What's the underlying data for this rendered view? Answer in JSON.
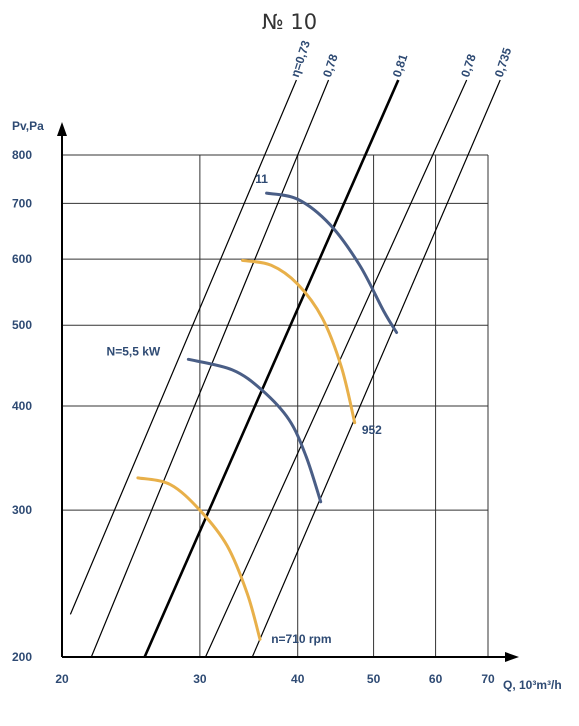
{
  "title": "№ 10",
  "chart_data": {
    "type": "line",
    "scale": "log-log",
    "xlabel": "Q, 10³m³/h",
    "ylabel": "Pv,Pa",
    "xlim": [
      20,
      70
    ],
    "ylim": [
      200,
      800
    ],
    "x_ticks": [
      20,
      30,
      40,
      50,
      60,
      70
    ],
    "y_ticks": [
      200,
      300,
      400,
      500,
      600,
      700,
      800
    ],
    "grid": true,
    "efficiency_lines": [
      {
        "label": "η=0,73",
        "bold": false,
        "points": [
          [
            20.5,
            225
          ],
          [
            36.3,
            800
          ]
        ]
      },
      {
        "label": "0,78",
        "bold": false,
        "points": [
          [
            21.8,
            200
          ],
          [
            40.0,
            800
          ]
        ]
      },
      {
        "label": "0,81",
        "bold": true,
        "points": [
          [
            25.5,
            200
          ],
          [
            48.8,
            800
          ]
        ]
      },
      {
        "label": "0,78",
        "bold": false,
        "points": [
          [
            30.5,
            200
          ],
          [
            59.5,
            800
          ]
        ]
      },
      {
        "label": "0,735",
        "bold": false,
        "points": [
          [
            35.0,
            200
          ],
          [
            66.0,
            800
          ]
        ]
      }
    ],
    "series": [
      {
        "color": "#4a5e86",
        "points": [
          [
            36.5,
            720
          ],
          [
            40.0,
            708
          ],
          [
            44.0,
            660
          ],
          [
            48.0,
            590
          ],
          [
            51.5,
            520
          ],
          [
            53.5,
            490
          ]
        ]
      },
      {
        "color": "#e8b04a",
        "points": [
          [
            34.0,
            598
          ],
          [
            37.0,
            590
          ],
          [
            40.0,
            560
          ],
          [
            43.0,
            510
          ],
          [
            45.5,
            445
          ],
          [
            47.3,
            382
          ]
        ]
      },
      {
        "color": "#4a5e86",
        "points": [
          [
            29.0,
            455
          ],
          [
            33.0,
            442
          ],
          [
            36.0,
            418
          ],
          [
            39.0,
            385
          ],
          [
            41.0,
            348
          ],
          [
            42.8,
            307
          ]
        ]
      },
      {
        "color": "#e8b04a",
        "points": [
          [
            25.0,
            328
          ],
          [
            27.5,
            322
          ],
          [
            30.0,
            300
          ],
          [
            32.5,
            272
          ],
          [
            34.5,
            238
          ],
          [
            35.8,
            210
          ]
        ]
      }
    ],
    "annotations": [
      {
        "text": "11",
        "x": 35.3,
        "y": 740
      },
      {
        "text": "952",
        "x": 48.3,
        "y": 370
      },
      {
        "text": "N=5,5 kW",
        "x": 22.8,
        "y": 460
      },
      {
        "text": "n=710 rpm",
        "x": 37.0,
        "y": 208
      }
    ]
  }
}
